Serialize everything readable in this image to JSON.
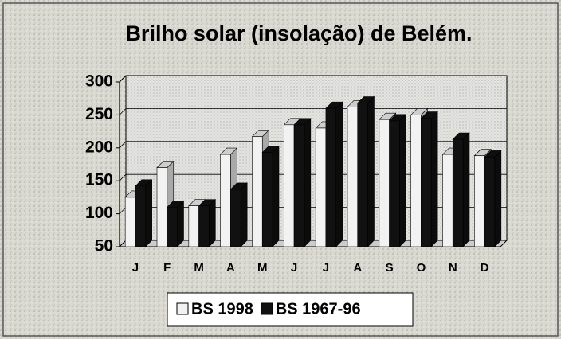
{
  "chart_data": {
    "type": "bar",
    "title": "Brilho solar (insolação) de Belém.",
    "categories": [
      "J",
      "F",
      "M",
      "A",
      "M",
      "J",
      "J",
      "A",
      "S",
      "O",
      "N",
      "D"
    ],
    "series": [
      {
        "name": "BS 1998",
        "color": "#f2f2f2",
        "values": [
          125,
          170,
          112,
          190,
          217,
          235,
          230,
          262,
          243,
          250,
          190,
          188
        ]
      },
      {
        "name": "BS 1967-96",
        "color": "#111111",
        "values": [
          142,
          110,
          112,
          137,
          193,
          235,
          260,
          268,
          241,
          245,
          213,
          186
        ]
      }
    ],
    "ylim": [
      50,
      300
    ],
    "yticks": [
      50,
      100,
      150,
      200,
      250,
      300
    ],
    "grid": true,
    "legend": "bottom"
  }
}
